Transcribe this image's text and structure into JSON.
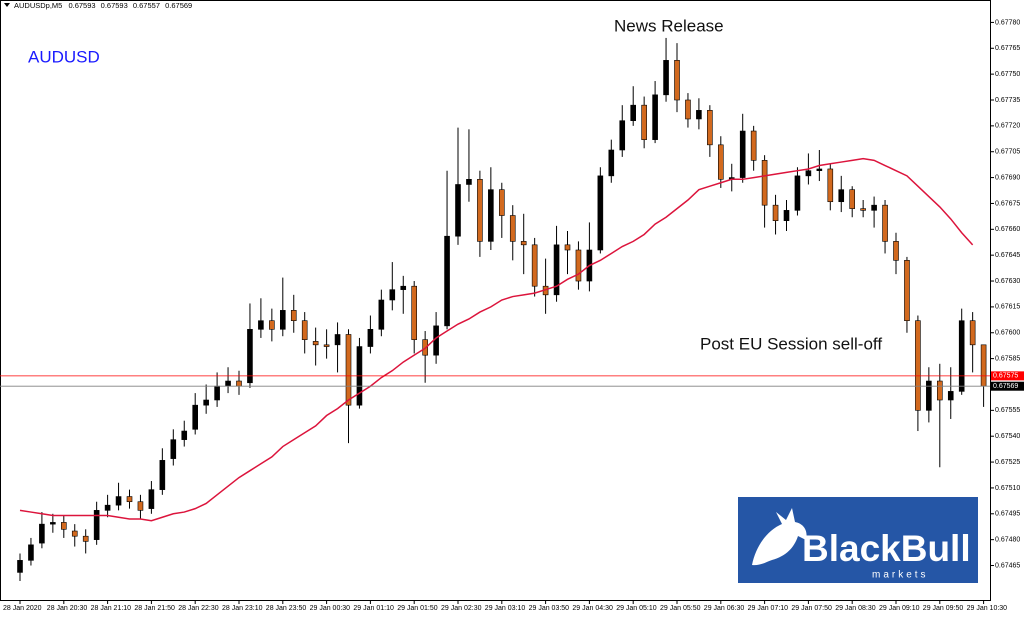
{
  "chart_data": {
    "type": "candlestick",
    "symbol": "AUDUSDp,M5",
    "annotations": [
      "AUDUSD",
      "News Release",
      "Post EU Session sell-off"
    ],
    "bull_color": "#000000",
    "bear_color": "#d2691e",
    "wick_color": "#000000",
    "categories": [
      "28 Jan 2020",
      null,
      null,
      null,
      "28 Jan 20:30",
      null,
      null,
      null,
      "28 Jan 21:10",
      null,
      null,
      null,
      "28 Jan 21:50",
      null,
      null,
      null,
      "28 Jan 22:30",
      null,
      null,
      null,
      "28 Jan 23:10",
      null,
      null,
      null,
      "28 Jan 23:50",
      null,
      null,
      null,
      "29 Jan 00:30",
      null,
      null,
      null,
      "29 Jan 01:10",
      null,
      null,
      null,
      "29 Jan 01:50",
      null,
      null,
      null,
      "29 Jan 02:30",
      null,
      null,
      null,
      "29 Jan 03:10",
      null,
      null,
      null,
      "29 Jan 03:50",
      null,
      null,
      null,
      "29 Jan 04:30",
      null,
      null,
      null,
      "29 Jan 05:10",
      null,
      null,
      null,
      "29 Jan 05:50",
      null,
      null,
      null,
      "29 Jan 06:30",
      null,
      null,
      null,
      "29 Jan 07:10",
      null,
      null,
      null,
      "29 Jan 07:50",
      null,
      null,
      null,
      "29 Jan 08:30",
      null,
      null,
      null,
      "29 Jan 09:10",
      null,
      null,
      null,
      "29 Jan 09:50",
      null,
      null,
      null,
      "29 Jan 10:30"
    ],
    "open": [
      0.67461,
      0.67468,
      0.67478,
      0.67489,
      0.6749,
      0.67485,
      0.67482,
      0.6748,
      0.67497,
      0.675,
      0.67505,
      0.67502,
      0.67498,
      0.67509,
      0.67527,
      0.67538,
      0.67544,
      0.67558,
      0.67561,
      0.67569,
      0.67572,
      0.67571,
      0.67602,
      0.67607,
      0.67602,
      0.67613,
      0.67607,
      0.67595,
      0.67593,
      0.67593,
      0.67599,
      0.67558,
      0.67592,
      0.67602,
      0.67619,
      0.67625,
      0.67627,
      0.67596,
      0.67587,
      0.67604,
      0.67656,
      0.67686,
      0.67689,
      0.67653,
      0.67683,
      0.67668,
      0.67653,
      0.67651,
      0.67627,
      0.67622,
      0.67651,
      0.67648,
      0.6763,
      0.67648,
      0.67691,
      0.67706,
      0.67723,
      0.67732,
      0.67712,
      0.67738,
      0.67758,
      0.67735,
      0.67724,
      0.67729,
      0.67709,
      0.67689,
      0.6769,
      0.67717,
      0.677,
      0.67674,
      0.67665,
      0.67671,
      0.67691,
      0.67694,
      0.67695,
      0.67676,
      0.67683,
      0.67672,
      0.67671,
      0.67674,
      0.67653,
      0.67642,
      0.67607,
      0.67555,
      0.67572,
      0.67561,
      0.67566,
      0.67607,
      0.67593
    ],
    "high": [
      0.67472,
      0.67481,
      0.67496,
      0.67495,
      0.67494,
      0.67489,
      0.67486,
      0.67502,
      0.67506,
      0.67513,
      0.67509,
      0.67506,
      0.67514,
      0.67533,
      0.67544,
      0.67549,
      0.67565,
      0.6757,
      0.67577,
      0.6758,
      0.67578,
      0.67617,
      0.6762,
      0.67614,
      0.67632,
      0.67622,
      0.67612,
      0.67603,
      0.67602,
      0.67606,
      0.67602,
      0.67597,
      0.6761,
      0.67625,
      0.67641,
      0.67633,
      0.6763,
      0.67601,
      0.67612,
      0.67694,
      0.67719,
      0.67718,
      0.67694,
      0.67696,
      0.67687,
      0.67674,
      0.67669,
      0.67655,
      0.67643,
      0.67662,
      0.67659,
      0.67653,
      0.67664,
      0.67696,
      0.67712,
      0.67732,
      0.67743,
      0.67737,
      0.67746,
      0.67771,
      0.67768,
      0.67739,
      0.67736,
      0.67732,
      0.67714,
      0.67698,
      0.67727,
      0.6772,
      0.67703,
      0.6768,
      0.67677,
      0.67696,
      0.67704,
      0.67706,
      0.67698,
      0.67691,
      0.67685,
      0.67677,
      0.67679,
      0.67677,
      0.67658,
      0.67644,
      0.6761,
      0.6758,
      0.67582,
      0.6758,
      0.67614,
      0.67612,
      0.67593
    ],
    "low": [
      0.67456,
      0.67465,
      0.67475,
      0.67484,
      0.67481,
      0.67476,
      0.67472,
      0.67477,
      0.67493,
      0.67497,
      0.67498,
      0.67492,
      0.67495,
      0.67506,
      0.67523,
      0.67534,
      0.67541,
      0.67553,
      0.67557,
      0.67565,
      0.67564,
      0.67568,
      0.67597,
      0.67595,
      0.67598,
      0.676,
      0.67588,
      0.67581,
      0.67585,
      0.67577,
      0.67536,
      0.67556,
      0.67588,
      0.67598,
      0.67613,
      0.67611,
      0.67588,
      0.67571,
      0.67582,
      0.67602,
      0.67651,
      0.67676,
      0.67644,
      0.67648,
      0.67655,
      0.67642,
      0.67634,
      0.67621,
      0.67611,
      0.67618,
      0.67634,
      0.67625,
      0.67624,
      0.67646,
      0.67687,
      0.67702,
      0.6772,
      0.67707,
      0.6771,
      0.67734,
      0.67728,
      0.67719,
      0.67718,
      0.67702,
      0.67684,
      0.67682,
      0.67687,
      0.67694,
      0.67661,
      0.67657,
      0.67659,
      0.67668,
      0.67686,
      0.67688,
      0.67671,
      0.6767,
      0.67667,
      0.67667,
      0.67661,
      0.67646,
      0.67634,
      0.676,
      0.67543,
      0.67548,
      0.67522,
      0.6755,
      0.67564,
      0.67577,
      0.67557
    ],
    "close": [
      0.67468,
      0.67477,
      0.67489,
      0.6749,
      0.67486,
      0.67482,
      0.67479,
      0.67497,
      0.675,
      0.67505,
      0.67502,
      0.67497,
      0.67509,
      0.67526,
      0.67538,
      0.67543,
      0.67558,
      0.67561,
      0.67569,
      0.67572,
      0.67569,
      0.67602,
      0.67607,
      0.67602,
      0.67613,
      0.67607,
      0.67596,
      0.67593,
      0.67592,
      0.67599,
      0.67558,
      0.67592,
      0.67602,
      0.67619,
      0.67625,
      0.67627,
      0.67596,
      0.67587,
      0.67604,
      0.67656,
      0.67686,
      0.67689,
      0.67653,
      0.67683,
      0.67668,
      0.67653,
      0.67651,
      0.67627,
      0.67622,
      0.67651,
      0.67648,
      0.6763,
      0.67648,
      0.67691,
      0.67706,
      0.67723,
      0.67732,
      0.67712,
      0.67738,
      0.67758,
      0.67735,
      0.67724,
      0.67729,
      0.67709,
      0.67689,
      0.6769,
      0.67717,
      0.677,
      0.67674,
      0.67665,
      0.67671,
      0.67691,
      0.67694,
      0.67695,
      0.67676,
      0.67683,
      0.67672,
      0.67671,
      0.67674,
      0.67653,
      0.67642,
      0.67607,
      0.67555,
      0.67572,
      0.67561,
      0.67566,
      0.67607,
      0.67593,
      0.67569
    ],
    "ma": {
      "color": "#dc143c",
      "values": [
        0.67497,
        0.67496,
        0.67495,
        0.67494,
        0.67494,
        0.67494,
        0.67494,
        0.67494,
        0.67494,
        0.67493,
        0.67492,
        0.67492,
        0.67491,
        0.67493,
        0.67495,
        0.67496,
        0.67498,
        0.67501,
        0.67506,
        0.67511,
        0.67516,
        0.6752,
        0.67524,
        0.67528,
        0.67534,
        0.67538,
        0.67542,
        0.67546,
        0.67552,
        0.67556,
        0.67561,
        0.67565,
        0.67569,
        0.67574,
        0.67578,
        0.67583,
        0.67587,
        0.67591,
        0.67597,
        0.67601,
        0.67605,
        0.67608,
        0.67612,
        0.67615,
        0.67619,
        0.67621,
        0.67622,
        0.67623,
        0.67625,
        0.67627,
        0.67631,
        0.67634,
        0.67639,
        0.67642,
        0.67646,
        0.6765,
        0.67653,
        0.67657,
        0.67663,
        0.67667,
        0.67672,
        0.67677,
        0.67683,
        0.67685,
        0.67687,
        0.67689,
        0.67689,
        0.6769,
        0.67691,
        0.67692,
        0.67693,
        0.67694,
        0.67695,
        0.67697,
        0.67698,
        0.67699,
        0.677,
        0.67701,
        0.677,
        0.67697,
        0.67694,
        0.67691,
        0.67685,
        0.67679,
        0.67673,
        0.67666,
        0.67658,
        0.67651,
        null
      ]
    },
    "price_lines": [
      {
        "value": 0.67575,
        "color": "#ff0000"
      },
      {
        "value": 0.67569,
        "color": "#808080"
      }
    ],
    "ylim": [
      0.67445,
      0.67793
    ],
    "yticks": [
      {
        "value": 0.6778,
        "label": "0.67780"
      },
      0.67765,
      {
        "value": 0.6775,
        "label": "0.67750"
      },
      0.67735,
      {
        "value": 0.6772,
        "label": "0.67720"
      },
      0.67705,
      {
        "value": 0.6769,
        "label": "0.67690"
      },
      0.67675,
      {
        "value": 0.6766,
        "label": "0.67660"
      },
      0.67645,
      {
        "value": 0.6763,
        "label": "0.67630"
      },
      0.67615,
      {
        "value": 0.676,
        "label": "0.67600"
      },
      0.67585,
      0.67555,
      {
        "value": 0.6754,
        "label": "0.67540"
      },
      0.67525,
      {
        "value": 0.6751,
        "label": "0.67510"
      },
      0.67495,
      {
        "value": 0.6748,
        "label": "0.67480"
      },
      0.67465
    ],
    "grid": false
  },
  "logo": {
    "name": "BlackBull",
    "sub": "markets"
  }
}
